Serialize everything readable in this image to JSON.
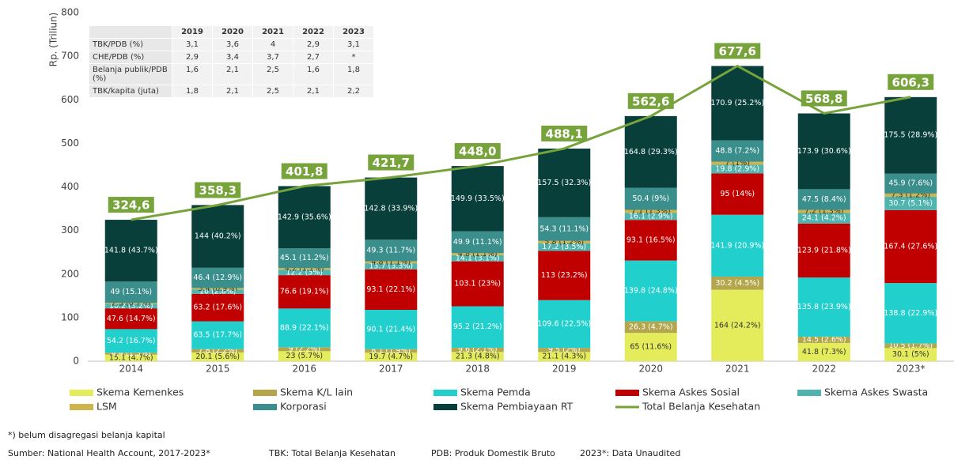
{
  "chart_data": {
    "type": "bar",
    "stacked": true,
    "y_axis_label": "Rp. (Triliun)",
    "categories": [
      "2014",
      "2015",
      "2016",
      "2017",
      "2018",
      "2019",
      "2020",
      "2021",
      "2022",
      "2023*"
    ],
    "ylim": [
      0,
      800
    ],
    "yticks": [
      0,
      100,
      200,
      300,
      400,
      500,
      600,
      700,
      800
    ],
    "grid": false,
    "series": [
      {
        "name": "Skema Kemenkes",
        "color": "#e4ec5c",
        "values": [
          15.1,
          20.1,
          23,
          19.7,
          21.3,
          21.1,
          65,
          164,
          41.8,
          30.1
        ],
        "value_labels": [
          "15.1 (4.7%)",
          "20.1 (5.6%)",
          "23 (5.7%)",
          "19.7 (4.7%)",
          "21.3 (4.8%)",
          "21.1 (4.3%)",
          "65 (11.6%)",
          "164 (24.2%)",
          "41.8 (7.3%)",
          "30.1 (5%)"
        ]
      },
      {
        "name": "Skema K/L lain",
        "color": "#b3a64c",
        "values": [
          4.4,
          7.8,
          9,
          8.1,
          9.6,
          9.5,
          26.3,
          30.2,
          14.5,
          10.5
        ],
        "value_labels": [
          "4.4 (1.3%)",
          "7.8 (2.2%)",
          "9 (2.2%)",
          "8.1 (1.9%)",
          "9.6 (2.1%)",
          "9.5 (2%)",
          "26.3 (4.7%)",
          "30.2 (4.5%)",
          "14.5 (2.6%)",
          "10.5 (1.7%)"
        ]
      },
      {
        "name": "Skema Pemda",
        "color": "#21d0cc",
        "values": [
          54.2,
          63.5,
          88.9,
          90.1,
          95.2,
          109.6,
          139.8,
          141.9,
          135.8,
          138.8
        ],
        "value_labels": [
          "54.2 (16.7%)",
          "63.5 (17.7%)",
          "88.9 (22.1%)",
          "90.1 (21.4%)",
          "95.2 (21.2%)",
          "109.6 (22.5%)",
          "139.8 (24.8%)",
          "141.9 (20.9%)",
          "135.8 (23.9%)",
          "138.8 (22.9%)"
        ]
      },
      {
        "name": "Skema Askes Sosial",
        "color": "#c00000",
        "values": [
          47.6,
          63.2,
          76.6,
          93.1,
          103.1,
          113,
          93.1,
          95,
          123.9,
          167.4
        ],
        "value_labels": [
          "47.6 (14.7%)",
          "63.2 (17.6%)",
          "76.6 (19.1%)",
          "93.1 (22.1%)",
          "103.1 (23%)",
          "113 (23.2%)",
          "93.1 (16.5%)",
          "95 (14%)",
          "123.9 (21.8%)",
          "167.4 (27.6%)"
        ]
      },
      {
        "name": "Skema Askes Swasta",
        "color": "#4fb3ae",
        "values": [
          10.2,
          10,
          12.2,
          13.7,
          14.1,
          17.2,
          16.1,
          19.8,
          24.1,
          30.7
        ],
        "value_labels": [
          "10.2 (3.2%)",
          "10 (2.8%)",
          "12.2 (3%)",
          "13.7 (3.3%)",
          "14.1 (3.1%)",
          "17.2 (3.5%)",
          "16.1 (2.9%)",
          "19.8 (2.9%)",
          "24.1 (4.2%)",
          "30.7 (5.1%)"
        ]
      },
      {
        "name": "LSM",
        "color": "#cdb44e",
        "values": [
          2.3,
          3.4,
          4.2,
          4.8,
          4.8,
          5.8,
          7.1,
          7,
          7.2,
          7.3
        ],
        "value_labels": [
          "2.3 (0.7%)",
          "3.4 (0.9%)",
          "4.2 (1.1%)",
          "4.8 (1.1%)",
          "4.8 (1.1%)",
          "5.8 (1.2%)",
          "7.1 (1.3%)",
          "7 (1%)",
          "7.2 (1.3%)",
          "7.3 (1.2%)"
        ]
      },
      {
        "name": "Korporasi",
        "color": "#3a8e8c",
        "values": [
          49,
          46.4,
          45.1,
          49.3,
          49.9,
          54.3,
          50.4,
          48.8,
          47.5,
          45.9
        ],
        "value_labels": [
          "49 (15.1%)",
          "46.4 (12.9%)",
          "45.1 (11.2%)",
          "49.3 (11.7%)",
          "49.9 (11.1%)",
          "54.3 (11.1%)",
          "50.4 (9%)",
          "48.8 (7.2%)",
          "47.5 (8.4%)",
          "45.9 (7.6%)"
        ]
      },
      {
        "name": "Skema Pembiayaan RT",
        "color": "#083f3b",
        "values": [
          141.8,
          144,
          142.9,
          142.8,
          149.9,
          157.5,
          164.8,
          170.9,
          173.9,
          175.5
        ],
        "value_labels": [
          "141.8 (43.7%)",
          "144 (40.2%)",
          "142.9 (35.6%)",
          "142.8 (33.9%)",
          "149.9 (33.5%)",
          "157.5 (32.3%)",
          "164.8 (29.3%)",
          "170.9 (25.2%)",
          "173.9 (30.6%)",
          "175.5 (28.9%)"
        ]
      },
      {
        "name": "Total Belanja Kesehatan",
        "type": "line",
        "color": "#77a33b",
        "values": [
          324.6,
          358.3,
          401.8,
          421.7,
          448.0,
          488.1,
          562.6,
          677.6,
          568.8,
          606.3
        ],
        "value_labels": [
          "324,6",
          "358,3",
          "401,8",
          "421,7",
          "448,0",
          "488,1",
          "562,6",
          "677,6",
          "568,8",
          "606,3"
        ]
      }
    ]
  },
  "table": {
    "header": [
      "2019",
      "2020",
      "2021",
      "2022",
      "2023"
    ],
    "rows": [
      [
        "TBK/PDB (%)",
        "3,1",
        "3,6",
        "4",
        "2,9",
        "3,1"
      ],
      [
        "CHE/PDB (%)",
        "2,9",
        "3,4",
        "3,7",
        "2,7",
        "*"
      ],
      [
        "Belanja publik/PDB (%)",
        "1,6",
        "2,1",
        "2,5",
        "1,6",
        "1,8"
      ],
      [
        "TBK/kapita (juta)",
        "1,8",
        "2,1",
        "2,5",
        "2,1",
        "2,2"
      ]
    ]
  },
  "footnotes": [
    "*) belum disagregasi belanja kapital",
    "Sumber: National Health Account, 2017-2023*",
    "TBK: Total Belanja Kesehatan",
    "PDB: Produk Domestik Bruto",
    "2023*: Data Unaudited"
  ]
}
